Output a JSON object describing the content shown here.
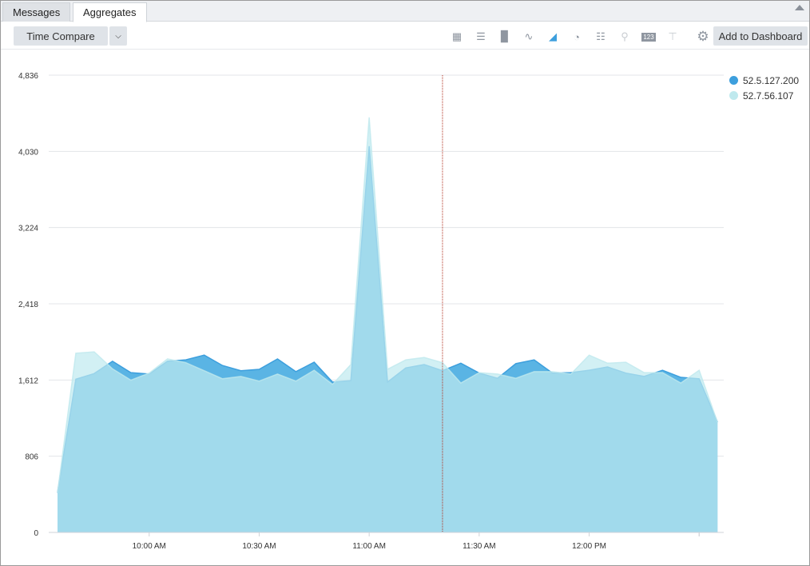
{
  "tabs": [
    {
      "label": "Messages",
      "active": false
    },
    {
      "label": "Aggregates",
      "active": true
    }
  ],
  "toolbar": {
    "time_compare": "Time Compare",
    "add_to_dashboard": "Add to Dashboard",
    "icons": [
      "table-icon",
      "bar-chart-icon",
      "column-chart-icon",
      "line-chart-icon",
      "area-chart-icon",
      "pie-chart-icon",
      "settings-sliders-icon",
      "map-pin-icon",
      "number-icon",
      "flow-icon",
      "gear-icon"
    ],
    "active_icon": "area-chart-icon"
  },
  "chart_data": {
    "type": "area",
    "x": [
      "9:35",
      "9:40",
      "9:45",
      "9:50",
      "9:55",
      "10:00",
      "10:05",
      "10:10",
      "10:15",
      "10:20",
      "10:25",
      "10:30",
      "10:35",
      "10:40",
      "10:45",
      "10:50",
      "10:55",
      "11:00",
      "11:05",
      "11:10",
      "11:15",
      "11:20",
      "11:25",
      "11:30",
      "11:35",
      "11:40",
      "11:45",
      "11:50",
      "11:55",
      "12:00",
      "12:05",
      "12:10",
      "12:15",
      "12:20",
      "12:25",
      "12:30",
      "12:35"
    ],
    "x_tick_labels": [
      "10:00 AM",
      "10:30 AM",
      "11:00 AM",
      "11:30 AM",
      "12:00 PM"
    ],
    "y_ticks": [
      "0",
      "806",
      "1,612",
      "2,418",
      "3,224",
      "4,030",
      "4,836"
    ],
    "ylim": [
      0,
      4836
    ],
    "grid": true,
    "legend": "top-right",
    "marker_line_x": "11:20",
    "series": [
      {
        "name": "52.5.127.200",
        "color": "#3d9fdd",
        "values": [
          420,
          1620,
          1680,
          1810,
          1690,
          1675,
          1810,
          1825,
          1875,
          1765,
          1710,
          1725,
          1835,
          1700,
          1800,
          1590,
          1605,
          4085,
          1590,
          1740,
          1775,
          1710,
          1790,
          1685,
          1630,
          1785,
          1825,
          1685,
          1690,
          1715,
          1750,
          1685,
          1650,
          1715,
          1640,
          1625,
          1165
        ]
      },
      {
        "name": "52.7.56.107",
        "color": "#bfe9ee",
        "values": [
          420,
          1895,
          1910,
          1730,
          1610,
          1685,
          1835,
          1795,
          1710,
          1625,
          1650,
          1600,
          1675,
          1600,
          1715,
          1565,
          1775,
          4390,
          1725,
          1825,
          1850,
          1795,
          1580,
          1690,
          1675,
          1630,
          1700,
          1700,
          1675,
          1875,
          1790,
          1800,
          1690,
          1690,
          1580,
          1715,
          1165
        ]
      }
    ]
  }
}
